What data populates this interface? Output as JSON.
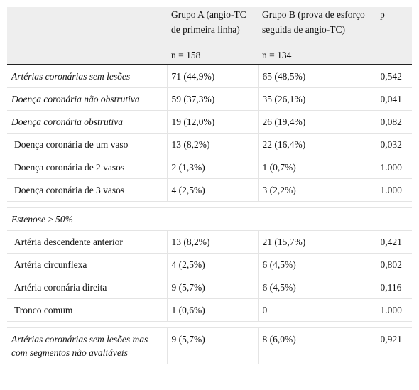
{
  "header": {
    "col1": "",
    "groupA_label": "Grupo A (angio-TC de primeira linha)",
    "groupA_n": "n = 158",
    "groupB_label": "Grupo B (prova de esforço seguida de angio-TC)",
    "groupB_n": "n = 134",
    "p_label": "p"
  },
  "rows": [
    {
      "label": "Artérias coronárias sem lesões",
      "a": "71 (44,9%)",
      "b": "65 (48,5%)",
      "p": "0,542"
    },
    {
      "label": "Doença coronária não obstrutiva",
      "a": "59 (37,3%)",
      "b": "35 (26,1%)",
      "p": "0,041"
    },
    {
      "label": "Doença coronária obstrutiva",
      "a": "19 (12,0%)",
      "b": "26 (19,4%)",
      "p": "0,082"
    },
    {
      "label": "Doença coronária de um vaso",
      "a": "13 (8,2%)",
      "b": "22 (16,4%)",
      "p": "0,032"
    },
    {
      "label": "Doença coronária de 2 vasos",
      "a": "2 (1,3%)",
      "b": "1 (0,7%)",
      "p": "1.000"
    },
    {
      "label": "Doença coronária de 3 vasos",
      "a": "4 (2,5%)",
      "b": "3 (2,2%)",
      "p": "1.000"
    },
    {
      "label": "Estenose ≥ 50%"
    },
    {
      "label": "Artéria descendente anterior",
      "a": "13 (8,2%)",
      "b": "21 (15,7%)",
      "p": "0,421"
    },
    {
      "label": "Artéria circunflexa",
      "a": "4 (2,5%)",
      "b": "6 (4,5%)",
      "p": "0,802"
    },
    {
      "label": "Artéria coronária direita",
      "a": "9 (5,7%)",
      "b": "6 (4,5%)",
      "p": "0,116"
    },
    {
      "label": "Tronco comum",
      "a": "1 (0,6%)",
      "b": "0",
      "p": "1.000"
    },
    {
      "label": "Artérias coronárias sem lesões mas com segmentos não avaliáveis",
      "a": "9 (5,7%)",
      "b": "8 (6,0%)",
      "p": "0,921"
    }
  ]
}
